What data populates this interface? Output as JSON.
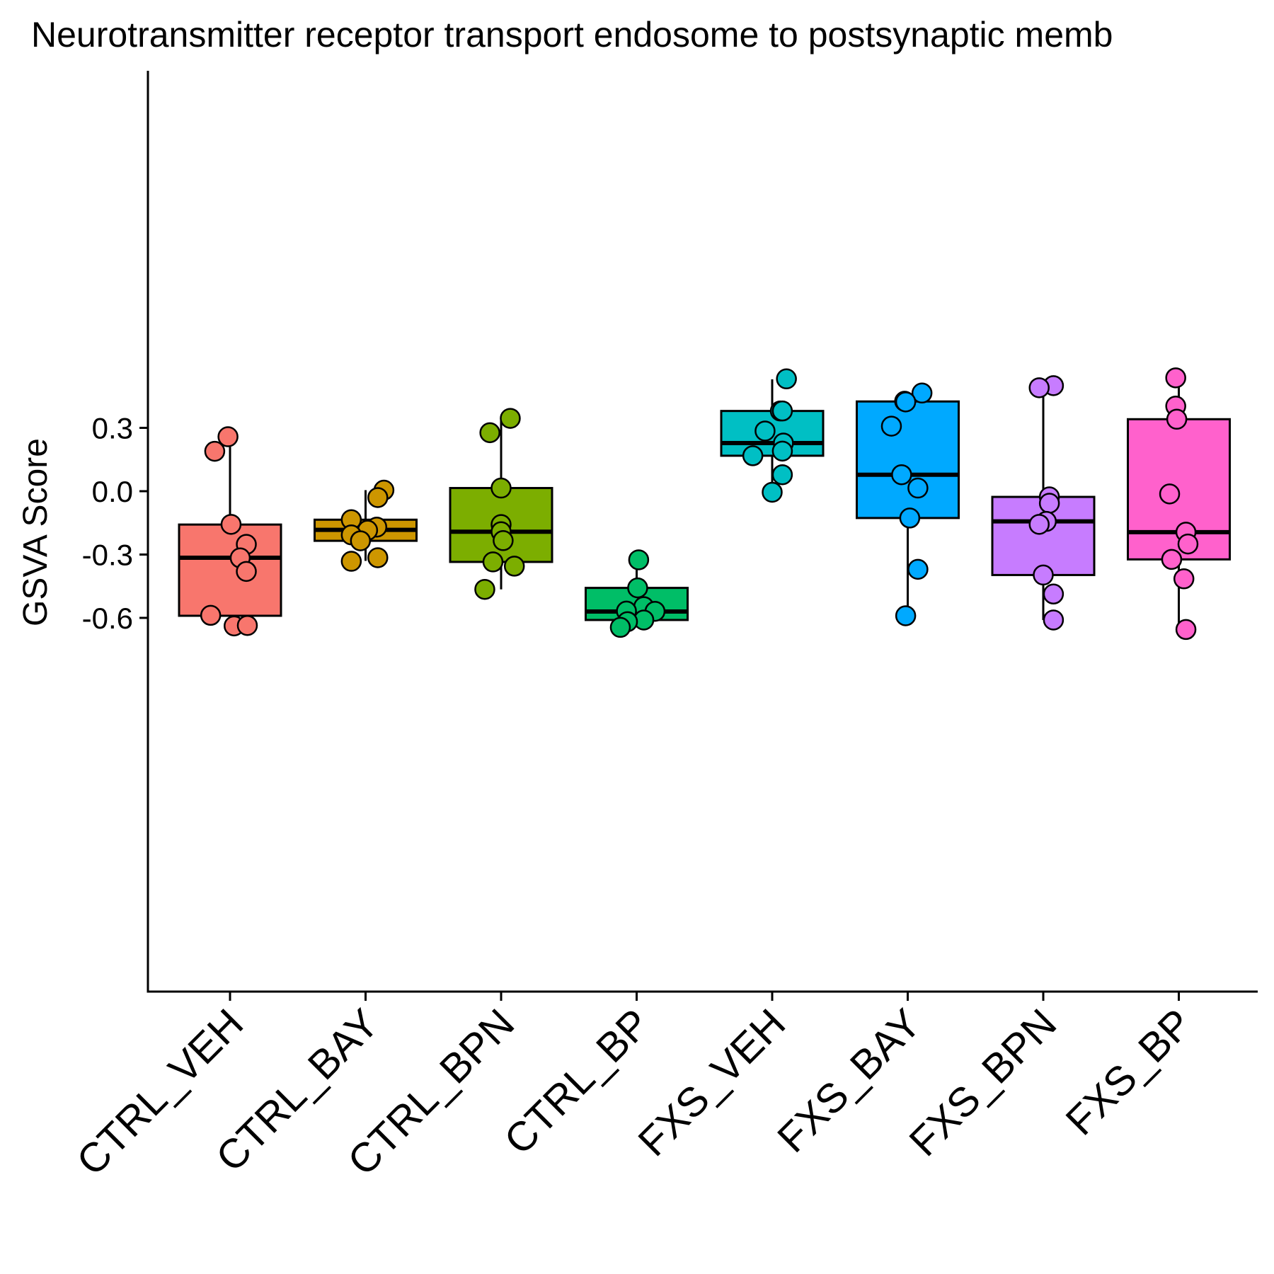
{
  "chart_data": {
    "type": "box",
    "title": "Neurotransmitter receptor transport endosome to postsynaptic memb",
    "ylabel": "GSVA Score",
    "xlabel": "",
    "ylim": [
      -0.71,
      0.595
    ],
    "yticks": [
      0.3,
      0.0,
      -0.3,
      -0.6
    ],
    "ytick_labels": [
      "0.3",
      "0.0",
      "-0.3",
      "-0.6"
    ],
    "grid": false,
    "legend": "none",
    "categories": [
      "CTRL_VEH",
      "CTRL_BAY",
      "CTRL_BPN",
      "CTRL_BP",
      "FXS_VEH",
      "FXS_BAY",
      "FXS_BPN",
      "FXS_BP"
    ],
    "colors": [
      "#F8766D",
      "#CD9600",
      "#7CAE00",
      "#00BE67",
      "#00BFC4",
      "#00A9FF",
      "#C77CFF",
      "#FF61CC"
    ],
    "boxes": [
      {
        "name": "CTRL_VEH",
        "whisker_low": -0.64,
        "q1": -0.59,
        "median": -0.315,
        "q3": -0.158,
        "whisker_high": 0.26
      },
      {
        "name": "CTRL_BAY",
        "whisker_low": -0.33,
        "q1": -0.235,
        "median": -0.183,
        "q3": -0.135,
        "whisker_high": 0.005
      },
      {
        "name": "CTRL_BPN",
        "whisker_low": -0.465,
        "q1": -0.335,
        "median": -0.192,
        "q3": 0.015,
        "whisker_high": 0.345
      },
      {
        "name": "CTRL_BP",
        "whisker_low": -0.64,
        "q1": -0.61,
        "median": -0.57,
        "q3": -0.458,
        "whisker_high": -0.325
      },
      {
        "name": "FXS_VEH",
        "whisker_low": -0.005,
        "q1": 0.168,
        "median": 0.228,
        "q3": 0.38,
        "whisker_high": 0.53
      },
      {
        "name": "FXS_BAY",
        "whisker_low": -0.59,
        "q1": -0.127,
        "median": 0.078,
        "q3": 0.425,
        "whisker_high": 0.465
      },
      {
        "name": "FXS_BPN",
        "whisker_low": -0.61,
        "q1": -0.397,
        "median": -0.143,
        "q3": -0.027,
        "whisker_high": 0.49
      },
      {
        "name": "FXS_BP",
        "whisker_low": -0.655,
        "q1": -0.323,
        "median": -0.194,
        "q3": 0.341,
        "whisker_high": 0.535
      }
    ],
    "points": [
      {
        "group": "CTRL_VEH",
        "jitter": -0.04,
        "y": 0.258
      },
      {
        "group": "CTRL_VEH",
        "jitter": -0.3,
        "y": 0.189
      },
      {
        "group": "CTRL_VEH",
        "jitter": 0.02,
        "y": -0.157
      },
      {
        "group": "CTRL_VEH",
        "jitter": 0.32,
        "y": -0.252
      },
      {
        "group": "CTRL_VEH",
        "jitter": 0.2,
        "y": -0.316
      },
      {
        "group": "CTRL_VEH",
        "jitter": 0.32,
        "y": -0.38
      },
      {
        "group": "CTRL_VEH",
        "jitter": -0.38,
        "y": -0.588
      },
      {
        "group": "CTRL_VEH",
        "jitter": 0.08,
        "y": -0.638
      },
      {
        "group": "CTRL_VEH",
        "jitter": 0.34,
        "y": -0.636
      },
      {
        "group": "CTRL_BAY",
        "jitter": 0.36,
        "y": 0.005
      },
      {
        "group": "CTRL_BAY",
        "jitter": 0.24,
        "y": -0.03
      },
      {
        "group": "CTRL_BAY",
        "jitter": -0.28,
        "y": -0.135
      },
      {
        "group": "CTRL_BAY",
        "jitter": 0.22,
        "y": -0.17
      },
      {
        "group": "CTRL_BAY",
        "jitter": 0.04,
        "y": -0.185
      },
      {
        "group": "CTRL_BAY",
        "jitter": -0.28,
        "y": -0.207
      },
      {
        "group": "CTRL_BAY",
        "jitter": -0.1,
        "y": -0.235
      },
      {
        "group": "CTRL_BAY",
        "jitter": 0.24,
        "y": -0.315
      },
      {
        "group": "CTRL_BAY",
        "jitter": -0.28,
        "y": -0.332
      },
      {
        "group": "CTRL_BPN",
        "jitter": 0.18,
        "y": 0.345
      },
      {
        "group": "CTRL_BPN",
        "jitter": -0.22,
        "y": 0.277
      },
      {
        "group": "CTRL_BPN",
        "jitter": 0.0,
        "y": 0.015
      },
      {
        "group": "CTRL_BPN",
        "jitter": 0.0,
        "y": -0.158
      },
      {
        "group": "CTRL_BPN",
        "jitter": 0.0,
        "y": -0.192
      },
      {
        "group": "CTRL_BPN",
        "jitter": 0.04,
        "y": -0.234
      },
      {
        "group": "CTRL_BPN",
        "jitter": -0.16,
        "y": -0.335
      },
      {
        "group": "CTRL_BPN",
        "jitter": 0.26,
        "y": -0.355
      },
      {
        "group": "CTRL_BPN",
        "jitter": -0.32,
        "y": -0.465
      },
      {
        "group": "CTRL_BP",
        "jitter": 0.04,
        "y": -0.325
      },
      {
        "group": "CTRL_BP",
        "jitter": 0.02,
        "y": -0.458
      },
      {
        "group": "CTRL_BP",
        "jitter": 0.14,
        "y": -0.547
      },
      {
        "group": "CTRL_BP",
        "jitter": -0.2,
        "y": -0.568
      },
      {
        "group": "CTRL_BP",
        "jitter": 0.36,
        "y": -0.569
      },
      {
        "group": "CTRL_BP",
        "jitter": 0.14,
        "y": -0.61
      },
      {
        "group": "CTRL_BP",
        "jitter": -0.18,
        "y": -0.618
      },
      {
        "group": "CTRL_BP",
        "jitter": -0.32,
        "y": -0.645
      },
      {
        "group": "FXS_VEH",
        "jitter": 0.28,
        "y": 0.532
      },
      {
        "group": "FXS_VEH",
        "jitter": 0.16,
        "y": 0.38
      },
      {
        "group": "FXS_VEH",
        "jitter": 0.2,
        "y": 0.38
      },
      {
        "group": "FXS_VEH",
        "jitter": -0.14,
        "y": 0.285
      },
      {
        "group": "FXS_VEH",
        "jitter": 0.22,
        "y": 0.228
      },
      {
        "group": "FXS_VEH",
        "jitter": 0.2,
        "y": 0.19
      },
      {
        "group": "FXS_VEH",
        "jitter": -0.38,
        "y": 0.168
      },
      {
        "group": "FXS_VEH",
        "jitter": 0.2,
        "y": 0.078
      },
      {
        "group": "FXS_VEH",
        "jitter": 0.0,
        "y": -0.005
      },
      {
        "group": "FXS_BAY",
        "jitter": 0.28,
        "y": 0.465
      },
      {
        "group": "FXS_BAY",
        "jitter": -0.06,
        "y": 0.426
      },
      {
        "group": "FXS_BAY",
        "jitter": -0.04,
        "y": 0.423
      },
      {
        "group": "FXS_BAY",
        "jitter": -0.32,
        "y": 0.308
      },
      {
        "group": "FXS_BAY",
        "jitter": -0.12,
        "y": 0.078
      },
      {
        "group": "FXS_BAY",
        "jitter": 0.2,
        "y": 0.015
      },
      {
        "group": "FXS_BAY",
        "jitter": 0.04,
        "y": -0.127
      },
      {
        "group": "FXS_BAY",
        "jitter": 0.2,
        "y": -0.37
      },
      {
        "group": "FXS_BAY",
        "jitter": -0.04,
        "y": -0.59
      },
      {
        "group": "FXS_BPN",
        "jitter": 0.2,
        "y": 0.5
      },
      {
        "group": "FXS_BPN",
        "jitter": -0.08,
        "y": 0.49
      },
      {
        "group": "FXS_BPN",
        "jitter": 0.12,
        "y": -0.027
      },
      {
        "group": "FXS_BPN",
        "jitter": 0.12,
        "y": -0.057
      },
      {
        "group": "FXS_BPN",
        "jitter": 0.06,
        "y": -0.143
      },
      {
        "group": "FXS_BPN",
        "jitter": -0.08,
        "y": -0.157
      },
      {
        "group": "FXS_BPN",
        "jitter": 0.0,
        "y": -0.397
      },
      {
        "group": "FXS_BPN",
        "jitter": 0.2,
        "y": -0.487
      },
      {
        "group": "FXS_BPN",
        "jitter": 0.2,
        "y": -0.61
      },
      {
        "group": "FXS_BP",
        "jitter": -0.06,
        "y": 0.537
      },
      {
        "group": "FXS_BP",
        "jitter": -0.06,
        "y": 0.403
      },
      {
        "group": "FXS_BP",
        "jitter": -0.04,
        "y": 0.341
      },
      {
        "group": "FXS_BP",
        "jitter": -0.18,
        "y": -0.013
      },
      {
        "group": "FXS_BP",
        "jitter": 0.14,
        "y": -0.194
      },
      {
        "group": "FXS_BP",
        "jitter": 0.18,
        "y": -0.25
      },
      {
        "group": "FXS_BP",
        "jitter": -0.14,
        "y": -0.323
      },
      {
        "group": "FXS_BP",
        "jitter": 0.1,
        "y": -0.415
      },
      {
        "group": "FXS_BP",
        "jitter": 0.14,
        "y": -0.655
      }
    ]
  }
}
